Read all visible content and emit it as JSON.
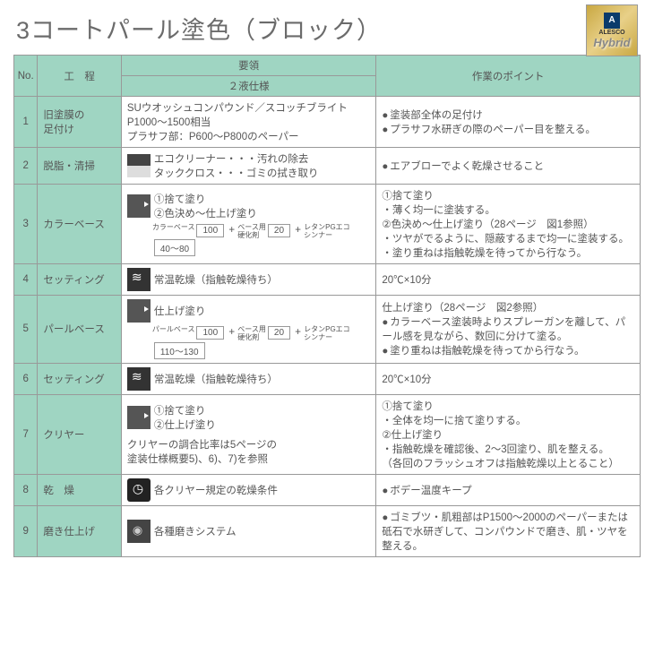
{
  "title": "3コートパール塗色（ブロック）",
  "logo": {
    "alesco": "ALESCO",
    "hybrid": "Hybrid",
    "mark": "A"
  },
  "headers": {
    "no": "No.",
    "proc": "工　程",
    "method_top": "要領",
    "method_sub": "２液仕様",
    "point": "作業のポイント"
  },
  "rows": [
    {
      "no": "1",
      "proc": "旧塗膜の\n足付け",
      "method": "SUウオッシュコンパウンド／スコッチブライトP1000～1500相当\nプラサフ部：P600～P800のペーパー",
      "points": [
        "塗装部全体の足付け",
        "プラサフ水研ぎの際のペーパー目を整える。"
      ]
    },
    {
      "no": "2",
      "proc": "脱脂・清掃",
      "method_icon": "wash",
      "method": "エコクリーナー・・・汚れの除去\nタッククロス・・・ゴミの拭き取り",
      "points": [
        "エアブローでよく乾燥させること"
      ]
    },
    {
      "no": "3",
      "proc": "カラーベース",
      "method_icon": "spray",
      "method_lines": [
        "①捨て塗り",
        "②色決め～仕上げ塗り"
      ],
      "boxes": [
        {
          "label": "カラーベース",
          "val": "100"
        },
        {
          "label": "ベース用\n硬化剤",
          "val": "20"
        },
        {
          "label": "レタンPGエコ\nシンナー",
          "val": "40～80"
        }
      ],
      "point_text": "①捨て塗り\n・薄く均一に塗装する。\n②色決め～仕上げ塗り（28ページ　図1参照）\n・ツヤがでるように、隠蔽するまで均一に塗装する。\n・塗り重ねは指触乾燥を待ってから行なう。"
    },
    {
      "no": "4",
      "proc": "セッティング",
      "method_icon": "dry",
      "method": "常温乾燥（指触乾燥待ち）",
      "point_plain": "20℃×10分"
    },
    {
      "no": "5",
      "proc": "パールベース",
      "method_icon": "spray",
      "method_lines": [
        "仕上げ塗り"
      ],
      "boxes": [
        {
          "label": "パールベース",
          "val": "100"
        },
        {
          "label": "ベース用\n硬化剤",
          "val": "20"
        },
        {
          "label": "レタンPGエコ\nシンナー",
          "val": "110～130"
        }
      ],
      "point_text": "仕上げ塗り（28ページ　図2参照）",
      "point_bullets": [
        "カラーベース塗装時よりスプレーガンを離して、パール感を見ながら、数回に分けて塗る。",
        "塗り重ねは指触乾燥を待ってから行なう。"
      ]
    },
    {
      "no": "6",
      "proc": "セッティング",
      "method_icon": "dry",
      "method": "常温乾燥（指触乾燥待ち）",
      "point_plain": "20℃×10分"
    },
    {
      "no": "7",
      "proc": "クリヤー",
      "method_icon": "spray",
      "method_lines": [
        "①捨て塗り",
        "②仕上げ塗り"
      ],
      "method_extra": "クリヤーの調合比率は5ページの\n塗装仕様概要5)、6)、7)を参照",
      "point_text": "①捨て塗り\n・全体を均一に捨て塗りする。\n②仕上げ塗り\n・指触乾燥を確認後、2～3回塗り、肌を整える。\n（各回のフラッシュオフは指触乾燥以上とること）"
    },
    {
      "no": "8",
      "proc": "乾　燥",
      "method_icon": "clock",
      "method": "各クリヤー規定の乾燥条件",
      "points": [
        "ボデー温度キープ"
      ]
    },
    {
      "no": "9",
      "proc": "磨き仕上げ",
      "method_icon": "polish",
      "method": "各種磨きシステム",
      "points": [
        "ゴミブツ・肌粗部はP1500～2000のペーパーまたは砥石で水研ぎして、コンパウンドで磨き、肌・ツヤを整える。"
      ]
    }
  ],
  "colors": {
    "header_bg": "#9fd5c2",
    "border": "#999999",
    "text": "#555555",
    "gold1": "#c9a842",
    "gold2": "#e8d088",
    "navy": "#0a3b6b"
  }
}
